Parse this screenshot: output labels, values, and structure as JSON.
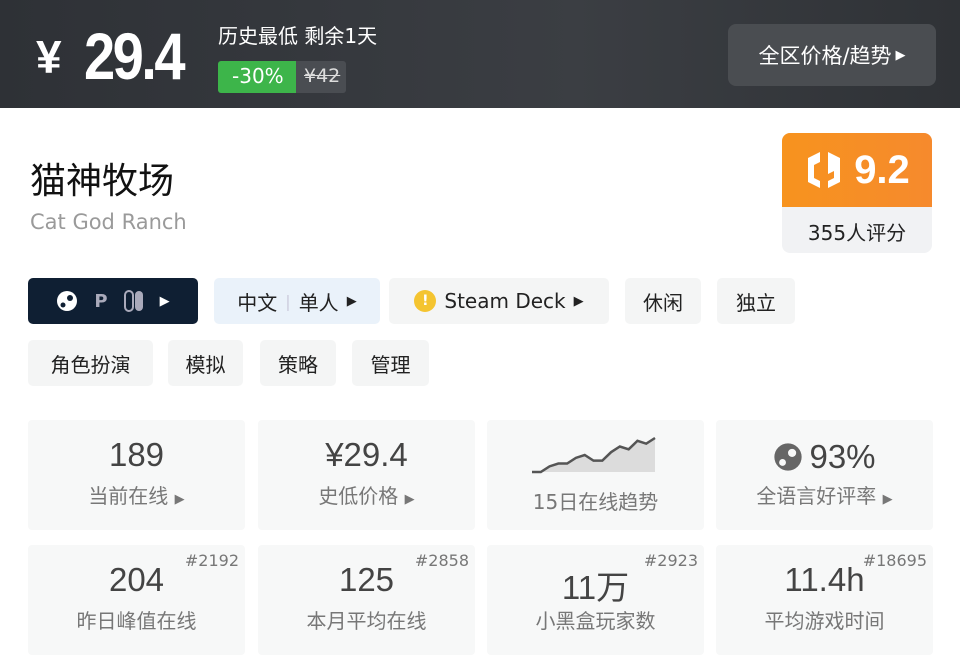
{
  "header": {
    "currency": "¥",
    "price": "29.4",
    "status": "历史最低 剩余1天",
    "discount": "-30%",
    "original_price": "¥42",
    "region_button": "全区价格/趋势"
  },
  "game": {
    "title": "猫神牧场",
    "subtitle": "Cat God Ranch",
    "score": "9.2",
    "score_count": "355人评分"
  },
  "tags": {
    "platform_icons": [
      "steam-icon",
      "playstation-icon",
      "switch-icon"
    ],
    "language": "中文",
    "mode": "单人",
    "steam_deck": "Steam Deck",
    "genres": [
      "休闲",
      "独立",
      "角色扮演",
      "模拟",
      "策略",
      "管理"
    ]
  },
  "stats": [
    {
      "value": "189",
      "label": "当前在线",
      "arrow": true
    },
    {
      "value": "¥29.4",
      "label": "史低价格",
      "arrow": true
    },
    {
      "value": "",
      "label": "15日在线趋势",
      "trend": [
        1,
        1,
        3,
        4,
        4,
        6,
        7,
        5,
        5,
        8,
        10,
        9,
        12,
        11,
        13
      ]
    },
    {
      "value": "93%",
      "label": "全语言好评率",
      "arrow": true
    },
    {
      "value": "204",
      "label": "昨日峰值在线",
      "rank": "#2192"
    },
    {
      "value": "125",
      "label": "本月平均在线",
      "rank": "#2858"
    },
    {
      "value": "11万",
      "label": "小黑盒玩家数",
      "rank": "#2923"
    },
    {
      "value": "11.4h",
      "label": "平均游戏时间",
      "rank": "#18695"
    }
  ],
  "colors": {
    "discount": "#3db54a",
    "score": "#f7931e",
    "platform_bg": "#0f1f33"
  }
}
